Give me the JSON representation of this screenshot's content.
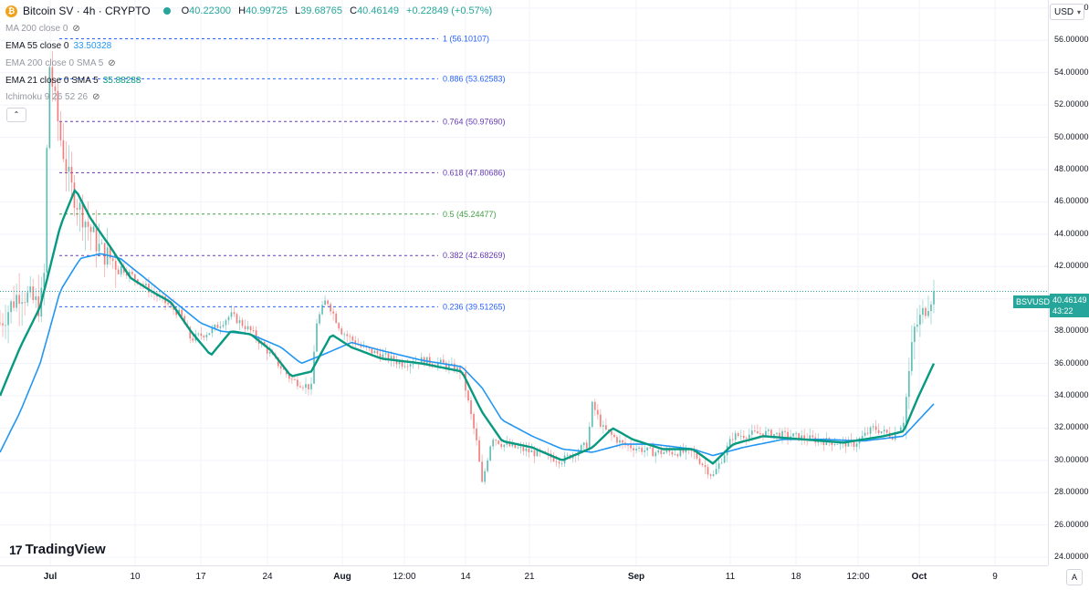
{
  "header": {
    "symbol_title": "Bitcoin SV · 4h · CRYPTO",
    "ohlc": [
      {
        "k": "O",
        "v": "40.22300"
      },
      {
        "k": "H",
        "v": "40.99725"
      },
      {
        "k": "L",
        "v": "39.68765"
      },
      {
        "k": "C",
        "v": "40.46149"
      }
    ],
    "change": "+0.22849 (+0.57%)"
  },
  "indicators": [
    {
      "label": "MA 200 close 0",
      "value": "",
      "muted": true,
      "hidden": true
    },
    {
      "label": "EMA 55 close 0",
      "value": "33.50328",
      "color": "#2196f3",
      "muted": false,
      "hidden": false
    },
    {
      "label": "EMA 200 close 0 SMA 5",
      "value": "",
      "muted": true,
      "hidden": true
    },
    {
      "label": "EMA 21 close 0 SMA 5",
      "value": "35.88288",
      "color": "#089981",
      "muted": false,
      "hidden": false
    },
    {
      "label": "Ichimoku 9 26 52 26",
      "value": "",
      "muted": true,
      "hidden": true
    }
  ],
  "icons": {
    "coin": "bitcoin-sv-coin-icon",
    "eye": "eye-crossed-icon",
    "collapse": "chevron-up-icon",
    "auto": "auto-scale-icon",
    "currency_chevron": "chevron-down-icon"
  },
  "collapse_glyph": "⌃",
  "currency": {
    "label": "USD",
    "chevron": "▾"
  },
  "price_tag": {
    "symbol": "BSVUSD",
    "price": "40.46149",
    "countdown": "43:22"
  },
  "logo": {
    "mark": "17",
    "text": "TradingView"
  },
  "auto_label": "A",
  "colors": {
    "up": "#26a69a",
    "down": "#ef5350",
    "ema21": "#089981",
    "ema55": "#2196f3",
    "fib_blue": "#2962ff",
    "fib_purple": "#673ab7",
    "fib_green": "#43a047"
  },
  "chart_data": {
    "type": "candlestick",
    "y_range": [
      23.5,
      58.5
    ],
    "y_ticks": [
      "58.00000",
      "56.00000",
      "54.00000",
      "52.00000",
      "50.00000",
      "48.00000",
      "46.00000",
      "44.00000",
      "42.00000",
      "40.00000",
      "38.00000",
      "36.00000",
      "34.00000",
      "32.00000",
      "30.00000",
      "28.00000",
      "26.00000",
      "24.00000"
    ],
    "x_labels": [
      "Jul",
      "10",
      "17",
      "24",
      "Aug",
      "12:00",
      "14",
      "21",
      "Sep",
      "11",
      "18",
      "12:00",
      "Oct",
      "9"
    ],
    "fib_levels": [
      {
        "ratio": "1",
        "label": "1 (56.10107)",
        "price": 56.10107,
        "color": "#2962ff"
      },
      {
        "ratio": "0.886",
        "label": "0.886 (53.62583)",
        "price": 53.62583,
        "color": "#2962ff"
      },
      {
        "ratio": "0.764",
        "label": "0.764 (50.97690)",
        "price": 50.9769,
        "color": "#673ab7"
      },
      {
        "ratio": "0.618",
        "label": "0.618 (47.80686)",
        "price": 47.80686,
        "color": "#673ab7"
      },
      {
        "ratio": "0.5",
        "label": "0.5 (45.24477)",
        "price": 45.24477,
        "color": "#43a047"
      },
      {
        "ratio": "0.382",
        "label": "0.382 (42.68269)",
        "price": 42.68269,
        "color": "#673ab7"
      },
      {
        "ratio": "0.236",
        "label": "0.236 (39.51265)",
        "price": 39.51265,
        "color": "#2962ff"
      }
    ],
    "last_price": 40.46149,
    "close_path": [
      [
        0,
        38.5
      ],
      [
        0.02,
        40.5
      ],
      [
        0.04,
        39.5
      ],
      [
        0.045,
        42
      ],
      [
        0.048,
        55
      ],
      [
        0.06,
        50
      ],
      [
        0.07,
        47
      ],
      [
        0.08,
        45.5
      ],
      [
        0.1,
        43
      ],
      [
        0.12,
        42
      ],
      [
        0.14,
        41
      ],
      [
        0.16,
        40
      ],
      [
        0.18,
        39
      ],
      [
        0.19,
        37.5
      ],
      [
        0.21,
        38
      ],
      [
        0.23,
        39
      ],
      [
        0.25,
        38
      ],
      [
        0.27,
        36.5
      ],
      [
        0.29,
        35
      ],
      [
        0.31,
        34.5
      ],
      [
        0.315,
        38.5
      ],
      [
        0.325,
        40
      ],
      [
        0.34,
        38
      ],
      [
        0.36,
        37
      ],
      [
        0.38,
        36.5
      ],
      [
        0.4,
        36
      ],
      [
        0.42,
        36.2
      ],
      [
        0.44,
        36
      ],
      [
        0.46,
        35.5
      ],
      [
        0.475,
        31
      ],
      [
        0.48,
        28.5
      ],
      [
        0.49,
        31.5
      ],
      [
        0.5,
        31
      ],
      [
        0.53,
        30.5
      ],
      [
        0.56,
        30
      ],
      [
        0.585,
        31
      ],
      [
        0.59,
        33.5
      ],
      [
        0.6,
        32
      ],
      [
        0.62,
        31
      ],
      [
        0.65,
        30.5
      ],
      [
        0.69,
        30.5
      ],
      [
        0.71,
        29
      ],
      [
        0.73,
        31.5
      ],
      [
        0.76,
        31.7
      ],
      [
        0.79,
        31.5
      ],
      [
        0.82,
        31.2
      ],
      [
        0.85,
        31
      ],
      [
        0.87,
        32
      ],
      [
        0.89,
        31.5
      ],
      [
        0.9,
        32.5
      ],
      [
        0.91,
        38
      ],
      [
        0.93,
        40.46
      ]
    ],
    "ema21_path": [
      [
        0,
        34
      ],
      [
        0.02,
        37
      ],
      [
        0.04,
        39.5
      ],
      [
        0.06,
        44.5
      ],
      [
        0.075,
        46.8
      ],
      [
        0.09,
        45
      ],
      [
        0.11,
        43.2
      ],
      [
        0.13,
        41.3
      ],
      [
        0.15,
        40.5
      ],
      [
        0.17,
        39.8
      ],
      [
        0.19,
        38
      ],
      [
        0.21,
        36.5
      ],
      [
        0.23,
        38
      ],
      [
        0.25,
        37.8
      ],
      [
        0.27,
        36.8
      ],
      [
        0.29,
        35.2
      ],
      [
        0.31,
        35.5
      ],
      [
        0.33,
        37.8
      ],
      [
        0.35,
        37
      ],
      [
        0.38,
        36.3
      ],
      [
        0.42,
        36
      ],
      [
        0.46,
        35.5
      ],
      [
        0.48,
        33
      ],
      [
        0.5,
        31.2
      ],
      [
        0.53,
        30.8
      ],
      [
        0.56,
        30
      ],
      [
        0.59,
        30.8
      ],
      [
        0.61,
        32
      ],
      [
        0.63,
        31.3
      ],
      [
        0.66,
        30.7
      ],
      [
        0.69,
        30.7
      ],
      [
        0.71,
        29.8
      ],
      [
        0.73,
        31
      ],
      [
        0.76,
        31.5
      ],
      [
        0.8,
        31.3
      ],
      [
        0.84,
        31.1
      ],
      [
        0.88,
        31.5
      ],
      [
        0.9,
        31.8
      ],
      [
        0.915,
        34
      ],
      [
        0.93,
        36
      ]
    ],
    "ema55_path": [
      [
        0,
        30.5
      ],
      [
        0.02,
        33
      ],
      [
        0.04,
        36
      ],
      [
        0.06,
        40.5
      ],
      [
        0.08,
        42.5
      ],
      [
        0.1,
        42.8
      ],
      [
        0.12,
        42.5
      ],
      [
        0.14,
        41.5
      ],
      [
        0.16,
        40.5
      ],
      [
        0.18,
        39.5
      ],
      [
        0.2,
        38.5
      ],
      [
        0.22,
        38
      ],
      [
        0.25,
        37.8
      ],
      [
        0.28,
        37
      ],
      [
        0.3,
        36
      ],
      [
        0.32,
        36.5
      ],
      [
        0.35,
        37.3
      ],
      [
        0.38,
        36.8
      ],
      [
        0.42,
        36.2
      ],
      [
        0.46,
        35.8
      ],
      [
        0.48,
        34.5
      ],
      [
        0.5,
        32.5
      ],
      [
        0.53,
        31.5
      ],
      [
        0.56,
        30.7
      ],
      [
        0.59,
        30.5
      ],
      [
        0.62,
        31
      ],
      [
        0.65,
        31
      ],
      [
        0.69,
        30.7
      ],
      [
        0.71,
        30.3
      ],
      [
        0.74,
        30.8
      ],
      [
        0.78,
        31.3
      ],
      [
        0.82,
        31.3
      ],
      [
        0.86,
        31.2
      ],
      [
        0.9,
        31.5
      ],
      [
        0.915,
        32.5
      ],
      [
        0.93,
        33.5
      ]
    ]
  }
}
